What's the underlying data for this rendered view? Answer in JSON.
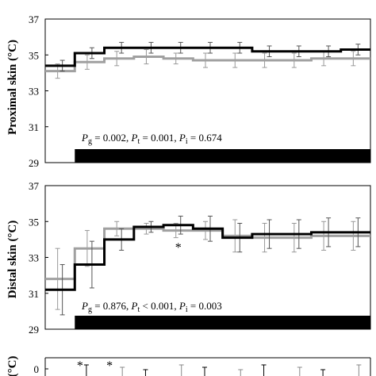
{
  "chart_data": [
    {
      "type": "line",
      "ylabel": "Proximal skin (°C)",
      "ylim": [
        29,
        37
      ],
      "yticks": [
        "29",
        "31",
        "33",
        "35",
        "37"
      ],
      "x": [
        1,
        2,
        3,
        4,
        5,
        6,
        7,
        8,
        9,
        10,
        11
      ],
      "series": [
        {
          "color": "#000000",
          "values": [
            34.4,
            35.1,
            35.4,
            35.4,
            35.4,
            35.4,
            35.4,
            35.2,
            35.2,
            35.2,
            35.3
          ],
          "errors": [
            0.3,
            0.3,
            0.3,
            0.3,
            0.3,
            0.3,
            0.3,
            0.3,
            0.3,
            0.3,
            0.3
          ]
        },
        {
          "color": "#a0a0a0",
          "values": [
            34.1,
            34.6,
            34.8,
            34.9,
            34.8,
            34.7,
            34.7,
            34.7,
            34.7,
            34.8,
            34.8
          ],
          "errors": [
            0.4,
            0.4,
            0.4,
            0.4,
            0.3,
            0.4,
            0.4,
            0.4,
            0.4,
            0.4,
            0.4
          ]
        }
      ],
      "annotation": {
        "parts": [
          {
            "t": "P",
            "i": true
          },
          {
            "t": "g",
            "s": true
          },
          {
            "t": " = 0.002, "
          },
          {
            "t": "P",
            "i": true
          },
          {
            "t": "t",
            "s": true
          },
          {
            "t": " = 0.001, "
          },
          {
            "t": "P",
            "i": true
          },
          {
            "t": "i",
            "s": true
          },
          {
            "t": " = 0.674"
          }
        ]
      },
      "stars": [],
      "bar": {
        "from": 2,
        "to": 11
      }
    },
    {
      "type": "line",
      "ylabel": "Distal skin (°C)",
      "ylim": [
        29,
        37
      ],
      "yticks": [
        "29",
        "31",
        "33",
        "35",
        "37"
      ],
      "x": [
        1,
        2,
        3,
        4,
        5,
        6,
        7,
        8,
        9,
        10,
        11
      ],
      "series": [
        {
          "color": "#000000",
          "values": [
            31.2,
            32.6,
            34.0,
            34.7,
            34.8,
            34.6,
            34.1,
            34.3,
            34.3,
            34.4,
            34.4
          ],
          "errors": [
            1.4,
            1.3,
            0.6,
            0.3,
            0.5,
            0.7,
            0.8,
            0.8,
            0.8,
            0.8,
            0.8
          ]
        },
        {
          "color": "#a0a0a0",
          "values": [
            31.8,
            33.5,
            34.6,
            34.6,
            34.5,
            34.5,
            34.2,
            34.1,
            34.1,
            34.2,
            34.2
          ],
          "errors": [
            1.7,
            1.0,
            0.4,
            0.3,
            0.4,
            0.5,
            0.9,
            0.8,
            0.8,
            0.8,
            0.8
          ]
        }
      ],
      "annotation": {
        "parts": [
          {
            "t": "P",
            "i": true
          },
          {
            "t": "g",
            "s": true
          },
          {
            "t": " = 0.876, "
          },
          {
            "t": "P",
            "i": true
          },
          {
            "t": "t",
            "s": true
          },
          {
            "t": " < 0.001, "
          },
          {
            "t": "P",
            "i": true
          },
          {
            "t": "i",
            "s": true
          },
          {
            "t": " = 0.003"
          }
        ]
      },
      "stars": [
        {
          "x": 5,
          "y": 33.6,
          "text": "*"
        }
      ],
      "bar": {
        "from": 2,
        "to": 11
      }
    },
    {
      "type": "line",
      "ylabel": "(°C)",
      "yticks": [
        "0"
      ],
      "stars": [
        {
          "x": 2,
          "text": "*"
        },
        {
          "x": 3,
          "text": "*"
        }
      ]
    }
  ]
}
